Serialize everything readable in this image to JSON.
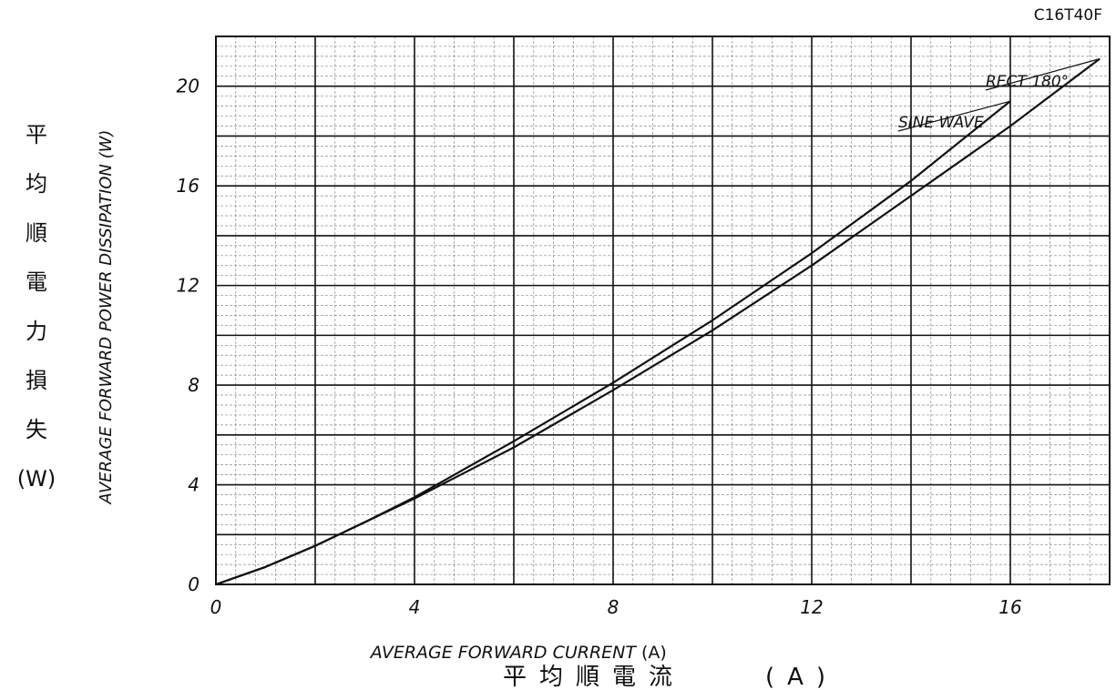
{
  "chart_data": {
    "type": "line",
    "part_number": "C16T40F",
    "xlabel": "AVERAGE FORWARD CURRENT",
    "xlabel_unit": "(A)",
    "xlabel_jp": "平均順電流",
    "xlabel_jp_unit": "(A)",
    "ylabel": "AVERAGE FORWARD POWER DISSIPATION (W)",
    "ylabel_jp": [
      "平",
      "均",
      "順",
      "電",
      "力",
      "損",
      "失",
      "(W)"
    ],
    "xlim": [
      0,
      18
    ],
    "ylim": [
      0,
      22
    ],
    "x_ticks": [
      0,
      4,
      8,
      12,
      16
    ],
    "y_ticks": [
      0,
      4,
      8,
      12,
      16,
      20
    ],
    "grid": true,
    "series": [
      {
        "name": "RECT 180°",
        "x": [
          0,
          1,
          2,
          3,
          4,
          6,
          8,
          10,
          12,
          14,
          16,
          17.8
        ],
        "y": [
          0,
          0.7,
          1.55,
          2.5,
          3.45,
          5.5,
          7.8,
          10.2,
          12.8,
          15.6,
          18.4,
          21.1
        ]
      },
      {
        "name": "SINE WAVE",
        "x": [
          0,
          1,
          2,
          3,
          4,
          6,
          8,
          10,
          12,
          14,
          16
        ],
        "y": [
          0,
          0.7,
          1.55,
          2.5,
          3.5,
          5.75,
          8.1,
          10.6,
          13.3,
          16.2,
          19.4
        ]
      }
    ]
  }
}
